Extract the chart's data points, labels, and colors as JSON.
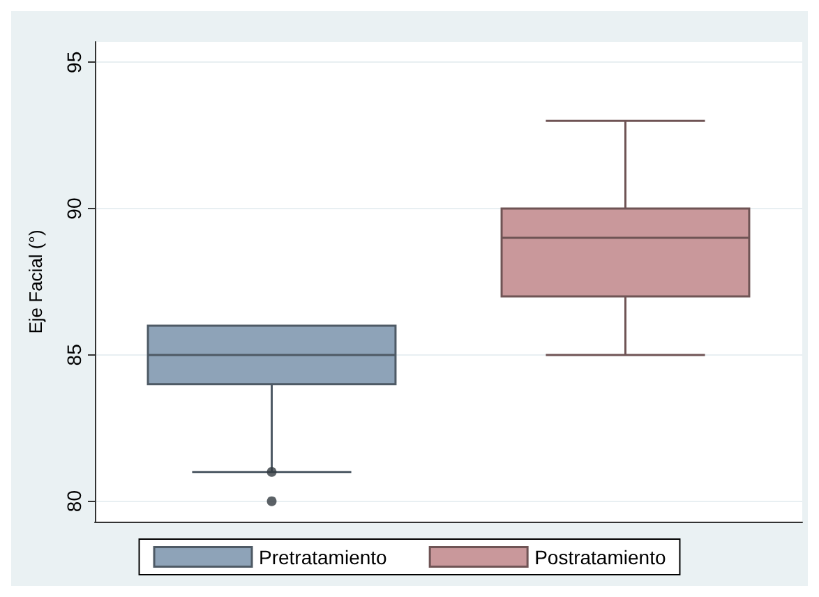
{
  "chart_data": {
    "type": "box",
    "ylabel": "Eje Facial (°)",
    "categories": [
      null,
      null
    ],
    "series": [
      {
        "name": "Pretratamiento",
        "color": "#8ea3b8",
        "boxes": [
          {
            "low": 81,
            "q1": 84,
            "median": 85,
            "q3": 86,
            "high": 86,
            "outliers": [
              81,
              80
            ]
          },
          null
        ]
      },
      {
        "name": "Postratamiento",
        "color": "#c9989b",
        "boxes": [
          null,
          {
            "low": 85,
            "q1": 87,
            "median": 89,
            "q3": 90,
            "high": 93
          }
        ]
      }
    ],
    "ylim": [
      79.3,
      95.7
    ],
    "yticks": [
      80,
      85,
      90,
      95
    ],
    "grid": "y",
    "legend": "bottom"
  }
}
